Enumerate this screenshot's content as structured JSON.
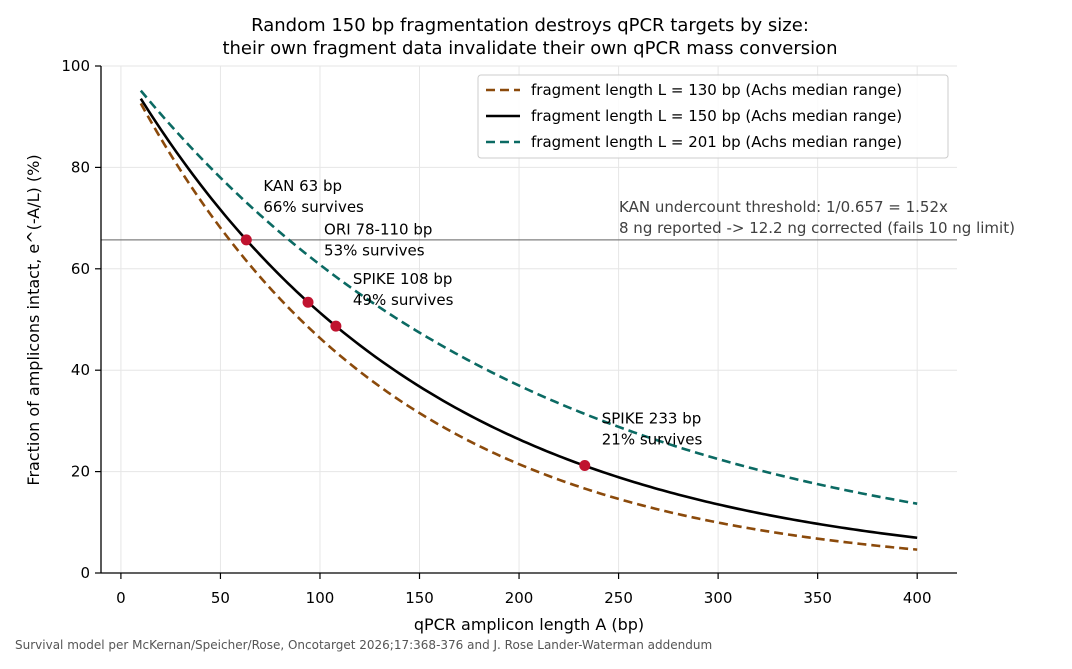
{
  "chart_data": {
    "type": "line",
    "title_line1": "Random 150 bp fragmentation destroys qPCR targets by size:",
    "title_line2": "their own fragment data invalidate their own qPCR mass conversion",
    "xlabel": "qPCR amplicon length A (bp)",
    "ylabel": "Fraction of amplicons intact, e^(-A/L) (%)",
    "xlim": [
      -10,
      420
    ],
    "ylim": [
      0,
      100
    ],
    "xticks": [
      0,
      50,
      100,
      150,
      200,
      250,
      300,
      350,
      400
    ],
    "yticks": [
      0,
      20,
      40,
      60,
      80,
      100
    ],
    "grid": true,
    "legend_position": "top-right",
    "series": [
      {
        "name": "fragment length L = 130 bp (Achs median range)",
        "L": 130,
        "x_range": [
          10,
          400
        ],
        "color": "#8B4A0B",
        "style": "dashed"
      },
      {
        "name": "fragment length L = 150 bp (Achs median range)",
        "L": 150,
        "x_range": [
          10,
          400
        ],
        "color": "#000000",
        "style": "solid"
      },
      {
        "name": "fragment length L = 201 bp (Achs median range)",
        "L": 201,
        "x_range": [
          10,
          400
        ],
        "color": "#0B6A63",
        "style": "dashed"
      }
    ],
    "points": [
      {
        "x": 63,
        "y": 65.7,
        "label_line1": "KAN 63 bp",
        "label_line2": "66% survives"
      },
      {
        "x": 94,
        "y": 53.4,
        "label_line1": "ORI 78-110 bp",
        "label_line2": "53% survives"
      },
      {
        "x": 108,
        "y": 48.7,
        "label_line1": "SPIKE 108 bp",
        "label_line2": "49% survives"
      },
      {
        "x": 233,
        "y": 21.2,
        "label_line1": "SPIKE 233 bp",
        "label_line2": "21% survives"
      }
    ],
    "point_color": "#C0132F",
    "hline": {
      "y": 65.7,
      "color": "#808080"
    },
    "hline_annotation_line1": "KAN undercount threshold: 1/0.657 = 1.52x",
    "hline_annotation_line2": "8 ng reported -> 12.2 ng corrected (fails 10 ng limit)"
  },
  "footnote": "Survival model per McKernan/Speicher/Rose, Oncotarget 2026;17:368-376 and J. Rose Lander-Waterman addendum"
}
